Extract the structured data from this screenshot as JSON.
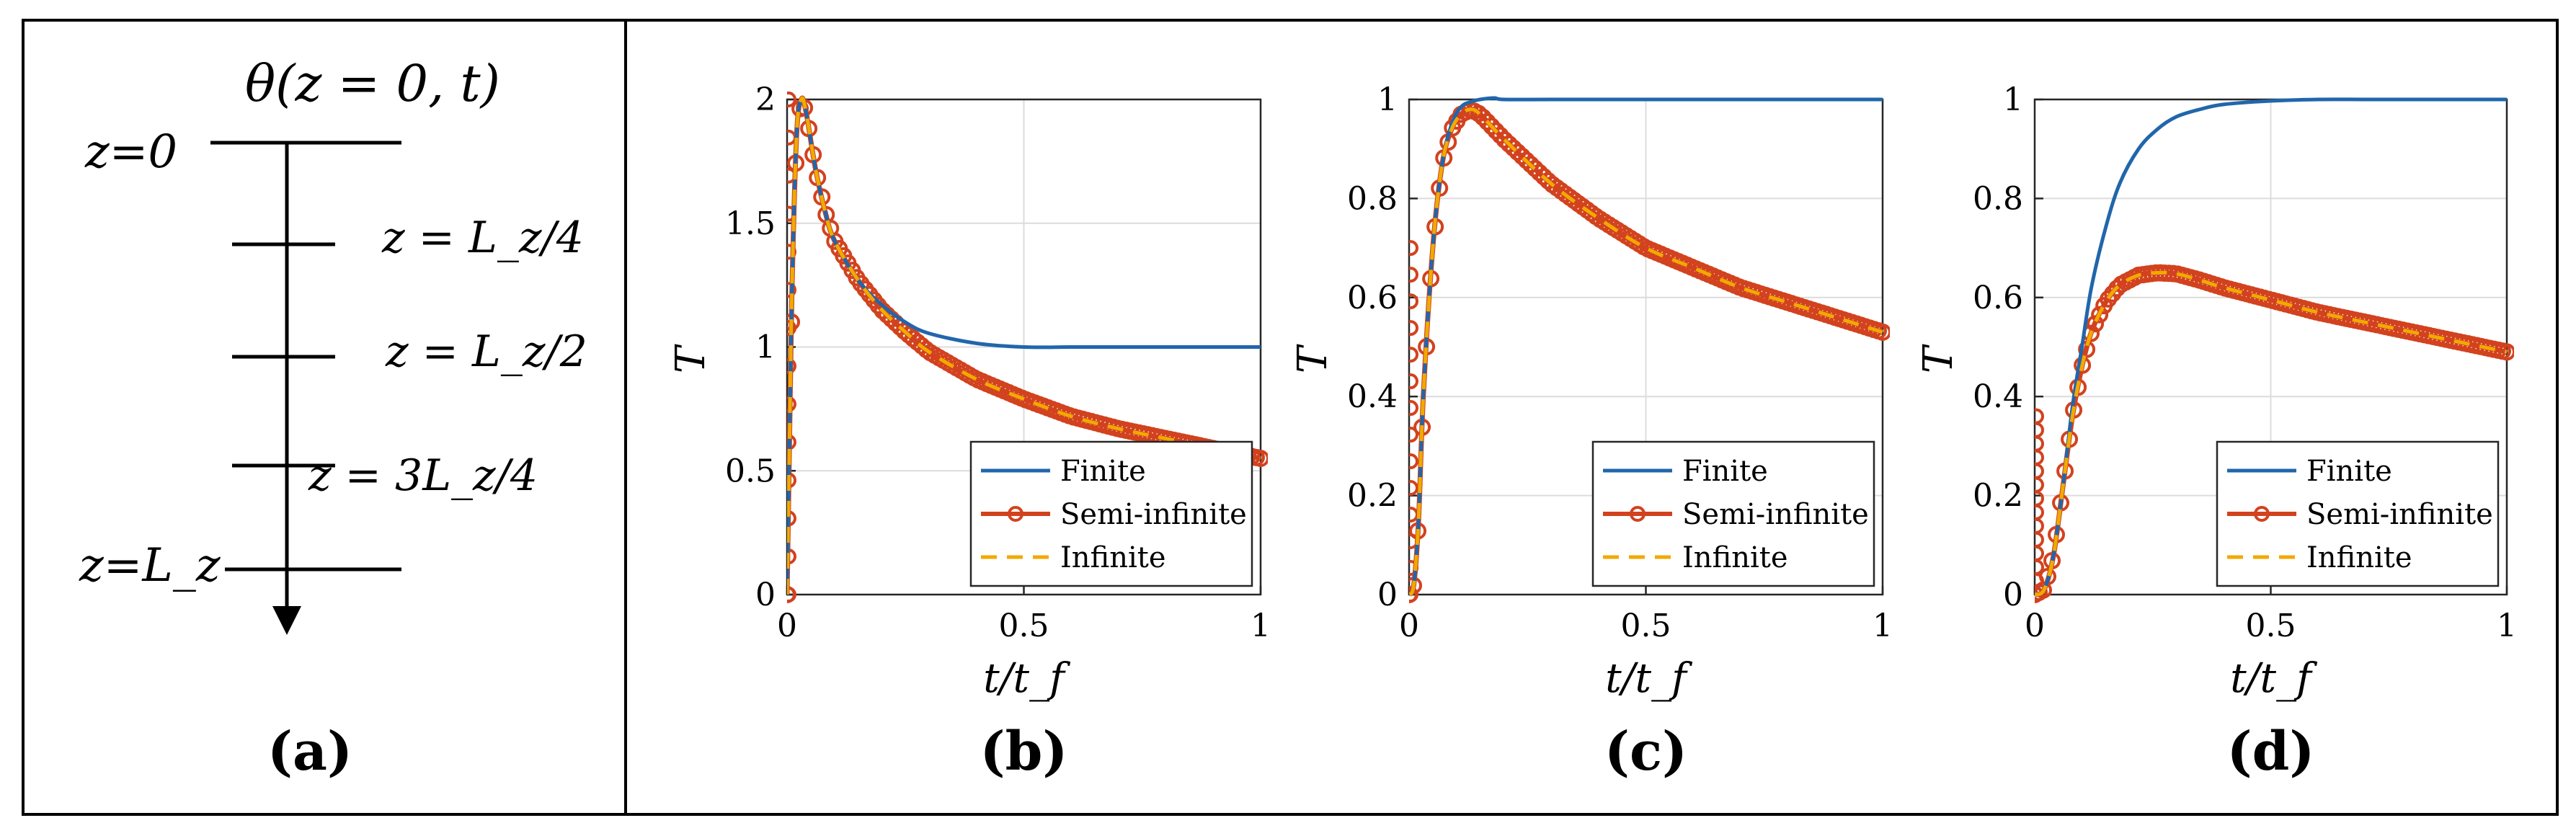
{
  "figure": {
    "panel_a": {
      "label": "(a)",
      "top_expr": "θ(z = 0, t)",
      "level_labels": [
        "z=0",
        "z = L_z/4",
        "z = L_z/2",
        "z = 3L_z/4",
        "z=L_z"
      ]
    }
  },
  "chart_data": [
    {
      "type": "line",
      "panel": "(b)",
      "xlabel": "t/t_f",
      "ylabel": "T",
      "xlim": [
        0,
        1
      ],
      "ylim": [
        0,
        2
      ],
      "xticks": [
        "0",
        "0.5",
        "1"
      ],
      "yticks": [
        "0",
        "0.5",
        "1",
        "1.5",
        "2"
      ],
      "yticks_values": [
        0,
        0.5,
        1,
        1.5,
        2
      ],
      "grid": true,
      "legend": {
        "location": "bottom-right",
        "entries": [
          "Finite",
          "Semi-infinite",
          "Infinite"
        ]
      },
      "series": [
        {
          "name": "Finite",
          "color": "#2166ac",
          "style": "solid",
          "x": [
            0,
            0.005,
            0.01,
            0.02,
            0.03,
            0.04,
            0.06,
            0.08,
            0.1,
            0.15,
            0.2,
            0.25,
            0.3,
            0.4,
            0.5,
            0.6,
            0.7,
            0.8,
            0.9,
            1.0
          ],
          "y": [
            0,
            0.6,
            1.2,
            1.85,
            2.0,
            1.95,
            1.72,
            1.55,
            1.43,
            1.27,
            1.17,
            1.1,
            1.055,
            1.015,
            1.0,
            1.0,
            1.0,
            1.0,
            1.0,
            1.0
          ]
        },
        {
          "name": "Semi-infinite",
          "color": "#d2421e",
          "style": "solid-markers",
          "x": [
            0,
            0.005,
            0.01,
            0.02,
            0.03,
            0.04,
            0.06,
            0.08,
            0.1,
            0.15,
            0.2,
            0.25,
            0.3,
            0.4,
            0.5,
            0.6,
            0.7,
            0.8,
            0.9,
            1.0
          ],
          "y": [
            0,
            0.6,
            1.2,
            1.85,
            2.0,
            1.95,
            1.72,
            1.55,
            1.43,
            1.27,
            1.15,
            1.06,
            0.98,
            0.87,
            0.79,
            0.72,
            0.67,
            0.63,
            0.59,
            0.55
          ]
        },
        {
          "name": "Infinite",
          "color": "#f2a900",
          "style": "dashed",
          "x": [
            0,
            0.005,
            0.01,
            0.02,
            0.03,
            0.04,
            0.06,
            0.08,
            0.1,
            0.15,
            0.2,
            0.25,
            0.3,
            0.4,
            0.5,
            0.6,
            0.7,
            0.8,
            0.9,
            1.0
          ],
          "y": [
            0,
            0.6,
            1.2,
            1.85,
            2.0,
            1.95,
            1.72,
            1.55,
            1.43,
            1.27,
            1.15,
            1.06,
            0.98,
            0.87,
            0.79,
            0.72,
            0.67,
            0.63,
            0.59,
            0.55
          ]
        }
      ]
    },
    {
      "type": "line",
      "panel": "(c)",
      "xlabel": "t/t_f",
      "ylabel": "T",
      "xlim": [
        0,
        1
      ],
      "ylim": [
        0,
        1
      ],
      "xticks": [
        "0",
        "0.5",
        "1"
      ],
      "yticks": [
        "0",
        "0.2",
        "0.4",
        "0.6",
        "0.8",
        "1"
      ],
      "yticks_values": [
        0,
        0.2,
        0.4,
        0.6,
        0.8,
        1
      ],
      "grid": true,
      "legend": {
        "location": "bottom-right",
        "entries": [
          "Finite",
          "Semi-infinite",
          "Infinite"
        ]
      },
      "series": [
        {
          "name": "Finite",
          "color": "#2166ac",
          "style": "solid",
          "x": [
            0,
            0.01,
            0.02,
            0.03,
            0.05,
            0.07,
            0.09,
            0.11,
            0.13,
            0.15,
            0.18,
            0.2,
            0.3,
            0.5,
            0.7,
            0.9,
            1.0
          ],
          "y": [
            0,
            0.02,
            0.15,
            0.4,
            0.7,
            0.87,
            0.95,
            0.985,
            0.995,
            1.0,
            1.003,
            1.0,
            1.0,
            1.0,
            1.0,
            1.0,
            1.0
          ]
        },
        {
          "name": "Semi-infinite",
          "color": "#d2421e",
          "style": "solid-markers",
          "x": [
            0,
            0.01,
            0.02,
            0.03,
            0.05,
            0.07,
            0.09,
            0.11,
            0.13,
            0.15,
            0.2,
            0.3,
            0.4,
            0.5,
            0.6,
            0.7,
            0.8,
            0.9,
            1.0
          ],
          "y": [
            0,
            0.02,
            0.15,
            0.4,
            0.7,
            0.87,
            0.94,
            0.97,
            0.98,
            0.97,
            0.92,
            0.83,
            0.76,
            0.7,
            0.66,
            0.62,
            0.59,
            0.56,
            0.53
          ]
        },
        {
          "name": "Infinite",
          "color": "#f2a900",
          "style": "dashed",
          "x": [
            0,
            0.01,
            0.02,
            0.03,
            0.05,
            0.07,
            0.09,
            0.11,
            0.13,
            0.15,
            0.2,
            0.3,
            0.4,
            0.5,
            0.6,
            0.7,
            0.8,
            0.9,
            1.0
          ],
          "y": [
            0,
            0.02,
            0.15,
            0.4,
            0.7,
            0.87,
            0.94,
            0.97,
            0.98,
            0.97,
            0.92,
            0.83,
            0.76,
            0.7,
            0.66,
            0.62,
            0.59,
            0.56,
            0.53
          ]
        }
      ]
    },
    {
      "type": "line",
      "panel": "(d)",
      "xlabel": "t/t_f",
      "ylabel": "T",
      "xlim": [
        0,
        1
      ],
      "ylim": [
        0,
        1
      ],
      "xticks": [
        "0",
        "0.5",
        "1"
      ],
      "yticks": [
        "0",
        "0.2",
        "0.4",
        "0.6",
        "0.8",
        "1"
      ],
      "yticks_values": [
        0,
        0.2,
        0.4,
        0.6,
        0.8,
        1
      ],
      "grid": true,
      "legend": {
        "location": "bottom-right",
        "entries": [
          "Finite",
          "Semi-infinite",
          "Infinite"
        ]
      },
      "series": [
        {
          "name": "Finite",
          "color": "#2166ac",
          "style": "solid",
          "x": [
            0,
            0.02,
            0.04,
            0.06,
            0.08,
            0.1,
            0.12,
            0.15,
            0.18,
            0.22,
            0.26,
            0.3,
            0.35,
            0.4,
            0.5,
            0.6,
            0.7,
            0.8,
            0.9,
            1.0
          ],
          "y": [
            0,
            0.01,
            0.08,
            0.22,
            0.38,
            0.5,
            0.62,
            0.74,
            0.83,
            0.9,
            0.94,
            0.965,
            0.98,
            0.99,
            0.997,
            1.0,
            1.0,
            1.0,
            1.0,
            1.0
          ]
        },
        {
          "name": "Semi-infinite",
          "color": "#d2421e",
          "style": "solid-markers",
          "x": [
            0,
            0.02,
            0.04,
            0.06,
            0.08,
            0.1,
            0.12,
            0.15,
            0.18,
            0.22,
            0.26,
            0.3,
            0.35,
            0.4,
            0.5,
            0.6,
            0.7,
            0.8,
            0.9,
            1.0
          ],
          "y": [
            0,
            0.01,
            0.08,
            0.22,
            0.36,
            0.46,
            0.53,
            0.59,
            0.625,
            0.645,
            0.65,
            0.648,
            0.635,
            0.62,
            0.595,
            0.57,
            0.55,
            0.53,
            0.51,
            0.49
          ]
        },
        {
          "name": "Infinite",
          "color": "#f2a900",
          "style": "dashed",
          "x": [
            0,
            0.02,
            0.04,
            0.06,
            0.08,
            0.1,
            0.12,
            0.15,
            0.18,
            0.22,
            0.26,
            0.3,
            0.35,
            0.4,
            0.5,
            0.6,
            0.7,
            0.8,
            0.9,
            1.0
          ],
          "y": [
            0,
            0.01,
            0.08,
            0.22,
            0.36,
            0.46,
            0.53,
            0.59,
            0.625,
            0.645,
            0.65,
            0.648,
            0.635,
            0.62,
            0.595,
            0.57,
            0.55,
            0.53,
            0.51,
            0.49
          ]
        }
      ]
    }
  ]
}
